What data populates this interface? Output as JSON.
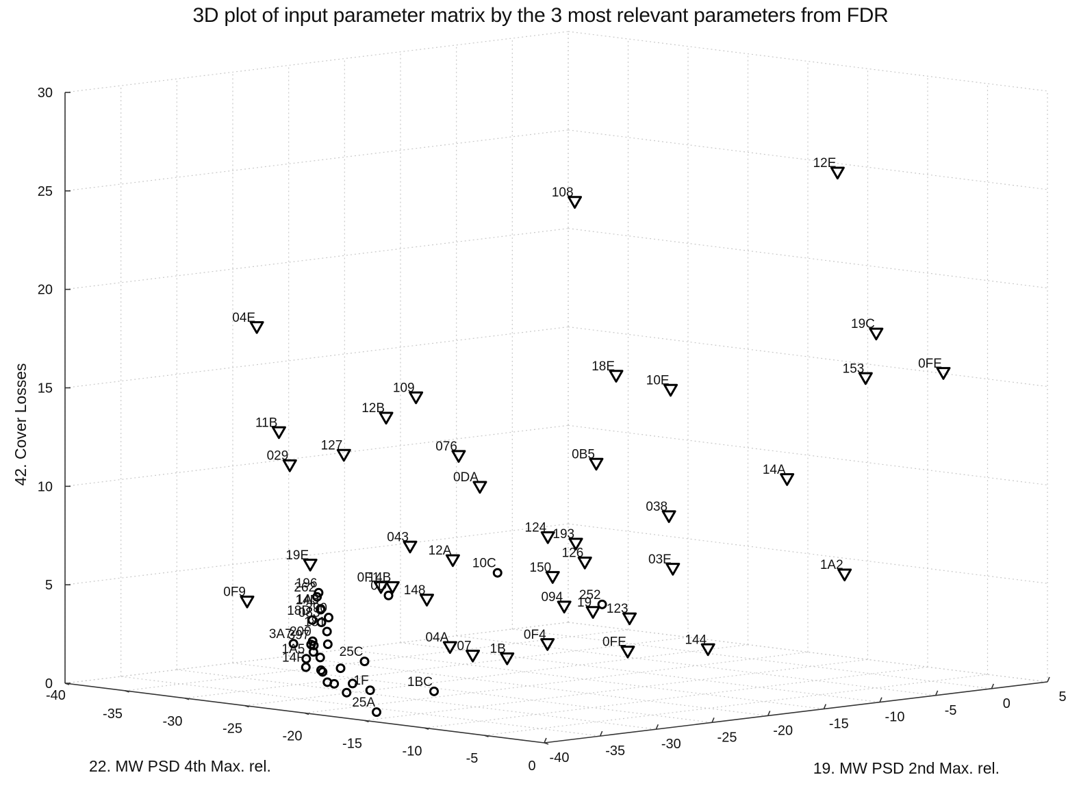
{
  "chart_data": {
    "type": "scatter",
    "projection": "3d",
    "title": "3D plot of input parameter matrix by the 3 most relevant parameters from FDR",
    "xlabel": "22. MW PSD 4th Max. rel.",
    "ylabel": "19. MW PSD 2nd Max. rel.",
    "zlabel": "42. Cover Losses",
    "xlim": [
      -40,
      0
    ],
    "ylim": [
      -40,
      5
    ],
    "zlim": [
      0,
      30
    ],
    "grid": true,
    "xticks": [
      "-40",
      "-35",
      "-30",
      "-25",
      "-20",
      "-15",
      "-10",
      "-5",
      "0"
    ],
    "yticks": [
      "-40",
      "-35",
      "-30",
      "-25",
      "-20",
      "-15",
      "-10",
      "-5",
      "0",
      "5"
    ],
    "zticks": [
      "0",
      "5",
      "10",
      "15",
      "20",
      "25",
      "30"
    ],
    "series": [
      {
        "marker": "triangle-down",
        "points": [
          {
            "label": "108",
            "x": -5.2,
            "y": -31.7,
            "z": 26.5
          },
          {
            "label": "12E",
            "x": -1.0,
            "y": -12.7,
            "z": 27.0
          },
          {
            "label": "04E",
            "x": -25.3,
            "y": -38.6,
            "z": 19.1
          },
          {
            "label": "19C",
            "x": -1.6,
            "y": -8.6,
            "z": 18.5
          },
          {
            "label": "18E",
            "x": -8.0,
            "y": -25.0,
            "z": 17.0
          },
          {
            "label": "10E",
            "x": -7.0,
            "y": -21.2,
            "z": 16.1
          },
          {
            "label": "153",
            "x": -2.3,
            "y": -8.8,
            "z": 16.2
          },
          {
            "label": "0FE",
            "x": -1.5,
            "y": -2.7,
            "z": 16.1
          },
          {
            "label": "109",
            "x": -13.6,
            "y": -36.9,
            "z": 16.3
          },
          {
            "label": "12B",
            "x": -14.6,
            "y": -38.5,
            "z": 15.3
          },
          {
            "label": "11B",
            "x": -22.8,
            "y": -39.3,
            "z": 14.0
          },
          {
            "label": "127",
            "x": -17.1,
            "y": -39.6,
            "z": 13.3
          },
          {
            "label": "076",
            "x": -12.0,
            "y": -34.8,
            "z": 13.3
          },
          {
            "label": "0B5",
            "x": -7.7,
            "y": -27.1,
            "z": 12.7
          },
          {
            "label": "029",
            "x": -21.8,
            "y": -39.4,
            "z": 12.4
          },
          {
            "label": "0DA",
            "x": -12.0,
            "y": -32.9,
            "z": 11.6
          },
          {
            "label": "14A",
            "x": -4.0,
            "y": -14.0,
            "z": 11.3
          },
          {
            "label": "038",
            "x": -6.3,
            "y": -22.1,
            "z": 9.8
          },
          {
            "label": "124",
            "x": -9.5,
            "y": -29.5,
            "z": 9.0
          },
          {
            "label": "043",
            "x": -14.0,
            "y": -37.0,
            "z": 8.7
          },
          {
            "label": "193",
            "x": -9.5,
            "y": -27.0,
            "z": 8.5
          },
          {
            "label": "12A",
            "x": -12.3,
            "y": -35.0,
            "z": 8.0
          },
          {
            "label": "126",
            "x": -9.4,
            "y": -26.3,
            "z": 7.5
          },
          {
            "label": "19E",
            "x": -20.0,
            "y": -39.5,
            "z": 7.5
          },
          {
            "label": "150",
            "x": -10.5,
            "y": -28.0,
            "z": 6.8
          },
          {
            "label": "03E",
            "x": -7.0,
            "y": -21.0,
            "z": 7.0
          },
          {
            "label": "14B",
            "x": -15.0,
            "y": -37.5,
            "z": 6.6
          },
          {
            "label": "0F1",
            "x": -15.5,
            "y": -38.0,
            "z": 6.6
          },
          {
            "label": "1A2",
            "x": -2.0,
            "y": -11.0,
            "z": 6.4
          },
          {
            "label": "148",
            "x": -14.0,
            "y": -35.5,
            "z": 5.9
          },
          {
            "label": "094",
            "x": -10.0,
            "y": -27.5,
            "z": 5.3
          },
          {
            "label": "19",
            "x": -9.0,
            "y": -26.0,
            "z": 5.0
          },
          {
            "label": "123",
            "x": -8.0,
            "y": -23.8,
            "z": 4.6
          },
          {
            "label": "0F9",
            "x": -24.8,
            "y": -40.0,
            "z": 5.3
          },
          {
            "label": "0F4",
            "x": -10.0,
            "y": -29.0,
            "z": 3.5
          },
          {
            "label": "0FE",
            "x": -7.5,
            "y": -24.5,
            "z": 3.0
          },
          {
            "label": "144",
            "x": -5.0,
            "y": -20.0,
            "z": 3.0
          },
          {
            "label": "04A",
            "x": -13.0,
            "y": -34.5,
            "z": 3.5
          },
          {
            "label": "07",
            "x": -12.5,
            "y": -33.0,
            "z": 3.0
          },
          {
            "label": "1B",
            "x": -11.5,
            "y": -31.0,
            "z": 2.8
          }
        ]
      },
      {
        "marker": "circle",
        "points": [
          {
            "label": "3A7",
            "x": -34.0,
            "y": -26.0,
            "z": 1.5
          },
          {
            "label": "397",
            "x": -33.0,
            "y": -25.5,
            "z": 1.5
          },
          {
            "label": "1A3",
            "x": -28.0,
            "y": -30.0,
            "z": 4.0
          },
          {
            "label": "262",
            "x": -25.5,
            "y": -33.0,
            "z": 5.0
          },
          {
            "label": "196",
            "x": -23.5,
            "y": -35.0,
            "z": 5.5
          },
          {
            "label": "18D",
            "x": -24.5,
            "y": -34.5,
            "z": 4.0
          },
          {
            "label": "14D",
            "x": -21.0,
            "y": -37.5,
            "z": 5.0
          },
          {
            "label": "390",
            "x": -18.0,
            "y": -40.0,
            "z": 5.0
          },
          {
            "label": "083",
            "x": -20.0,
            "y": -38.5,
            "z": 4.5
          },
          {
            "label": "181",
            "x": -20.0,
            "y": -38.0,
            "z": 4.0
          },
          {
            "label": "25C",
            "x": -15.0,
            "y": -40.0,
            "z": 3.0
          },
          {
            "label": "200",
            "x": -24.0,
            "y": -35.0,
            "z": 3.0
          },
          {
            "label": "1A5",
            "x": -25.0,
            "y": -34.5,
            "z": 2.0
          },
          {
            "label": "14F",
            "x": -25.5,
            "y": -34.0,
            "z": 1.5
          },
          {
            "label": "252",
            "x": -4.5,
            "y": -30.0,
            "z": 6.0
          },
          {
            "label": "0D",
            "x": -13.0,
            "y": -40.0,
            "z": 6.5
          },
          {
            "label": "1BC",
            "x": -12.0,
            "y": -37.0,
            "z": 1.5
          },
          {
            "label": "10C",
            "x": -9.5,
            "y": -34.0,
            "z": 7.5
          },
          {
            "label": "25A",
            "x": -14.0,
            "y": -40.0,
            "z": 0.5
          },
          {
            "label": "1F",
            "x": -15.0,
            "y": -39.5,
            "z": 1.5
          },
          {
            "label": "",
            "x": -17.0,
            "y": -40.0,
            "z": 2.5
          },
          {
            "label": "",
            "x": -20.5,
            "y": -38.0,
            "z": 2.0
          },
          {
            "label": "",
            "x": -21.5,
            "y": -37.0,
            "z": 2.5
          },
          {
            "label": "",
            "x": -19.0,
            "y": -39.0,
            "z": 3.5
          },
          {
            "label": "",
            "x": -18.5,
            "y": -40.0,
            "z": 2.2
          },
          {
            "label": "",
            "x": -16.0,
            "y": -40.0,
            "z": 1.8
          },
          {
            "label": "",
            "x": -16.5,
            "y": -40.0,
            "z": 1.3
          },
          {
            "label": "",
            "x": -22.5,
            "y": -36.5,
            "z": 3.0
          },
          {
            "label": "",
            "x": -23.0,
            "y": -36.0,
            "z": 2.6
          },
          {
            "label": "",
            "x": -18.0,
            "y": -39.5,
            "z": 1.6
          },
          {
            "label": "",
            "x": -19.5,
            "y": -38.5,
            "z": 1.5
          }
        ]
      }
    ]
  }
}
